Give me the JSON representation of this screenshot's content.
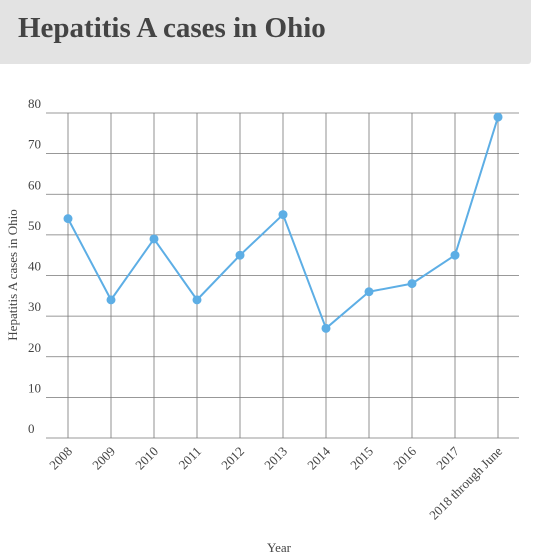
{
  "header": {
    "title": "Hepatitis A cases in Ohio"
  },
  "colors": {
    "line": "#5daee5",
    "grid": "#777777",
    "axis_text": "#444444",
    "header_bg": "#e3e3e3"
  },
  "chart_data": {
    "type": "line",
    "title": "Hepatitis A cases in Ohio",
    "xlabel": "Year",
    "ylabel": "Hepatitis A cases in Ohio",
    "categories": [
      "2008",
      "2009",
      "2010",
      "2011",
      "2012",
      "2013",
      "2014",
      "2015",
      "2016",
      "2017",
      "2018 through June"
    ],
    "series": [
      {
        "values": [
          54,
          34,
          49,
          34,
          45,
          55,
          27,
          36,
          38,
          45,
          79
        ]
      }
    ],
    "ylim": [
      0,
      80
    ],
    "yticks": [
      0,
      10,
      20,
      30,
      40,
      50,
      60,
      70,
      80
    ],
    "grid": true,
    "markers": true,
    "legend": "none"
  }
}
